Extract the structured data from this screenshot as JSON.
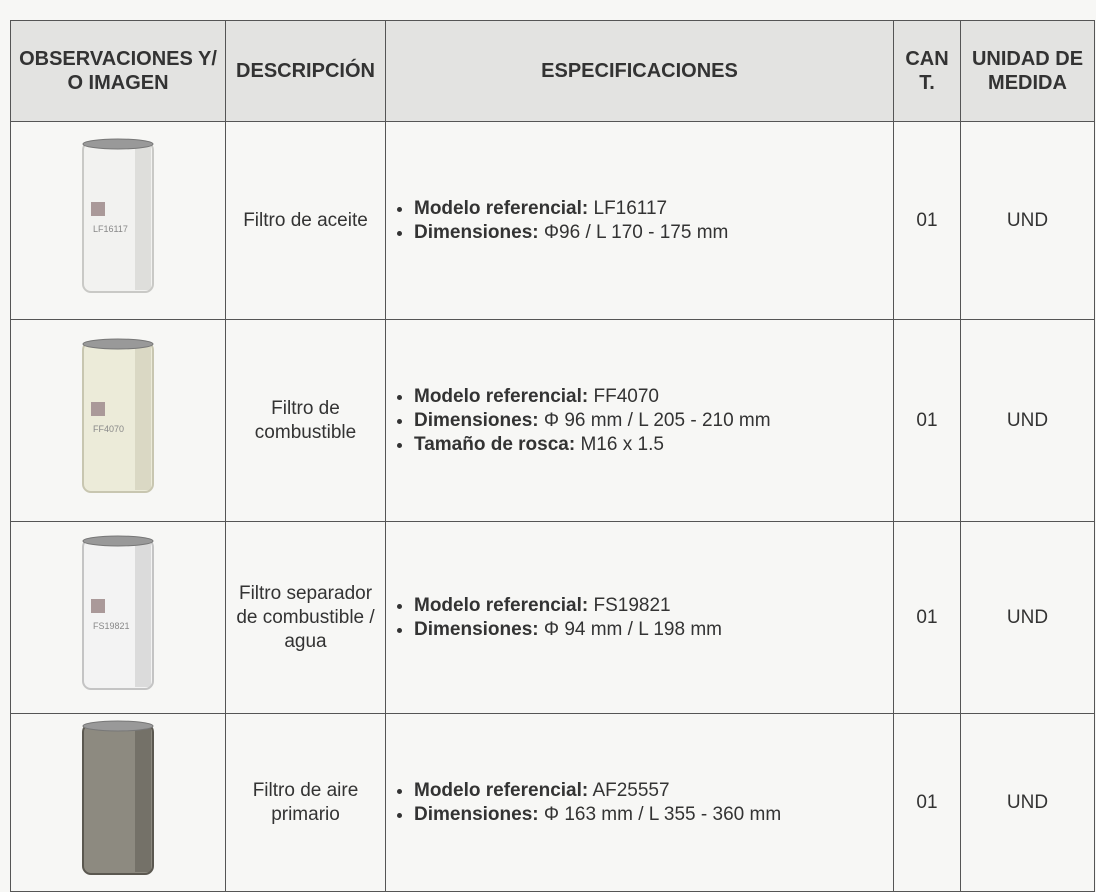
{
  "table": {
    "header": [
      "OBSERVACIONES Y/O IMAGEN",
      "DESCRIPCIÓN",
      "ESPECIFICACIONES",
      "CANT.",
      "UNIDAD DE MEDIDA"
    ],
    "rows": [
      {
        "image_label": "LF16117",
        "description": "Filtro de aceite",
        "specs": [
          {
            "label": "Modelo referencial:",
            "value": "LF16117"
          },
          {
            "label": "Dimensiones:",
            "value": "Φ96 / L 170 - 175 mm"
          }
        ],
        "quantity": "01",
        "unit": "UND"
      },
      {
        "image_label": "FF4070",
        "description": "Filtro de combustible",
        "specs": [
          {
            "label": "Modelo referencial:",
            "value": "FF4070"
          },
          {
            "label": "Dimensiones:",
            "value": "Φ 96 mm / L 205 - 210 mm"
          },
          {
            "label": "Tamaño de rosca:",
            "value": "M16 x 1.5"
          }
        ],
        "quantity": "01",
        "unit": "UND"
      },
      {
        "image_label": "FS19821",
        "description": "Filtro separador de combustible / agua",
        "specs": [
          {
            "label": "Modelo referencial:",
            "value": "FS19821"
          },
          {
            "label": "Dimensiones:",
            "value": "Φ 94 mm / L 198 mm"
          }
        ],
        "quantity": "01",
        "unit": "UND"
      },
      {
        "image_label": null,
        "description": "Filtro de aire primario",
        "specs": [
          {
            "label": "Modelo referencial:",
            "value": "AF25557"
          },
          {
            "label": "Dimensiones:",
            "value": "Φ 163 mm / L 355 - 360 mm"
          }
        ],
        "quantity": "01",
        "unit": "UND"
      }
    ]
  }
}
